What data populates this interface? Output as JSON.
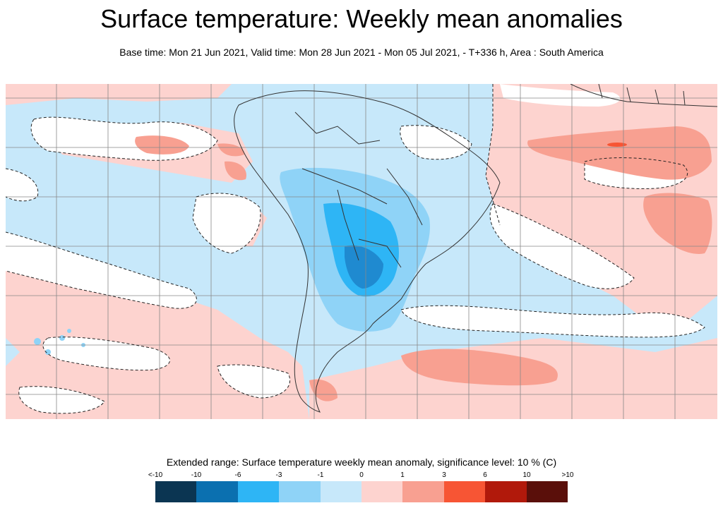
{
  "header": {
    "title": "Surface temperature: Weekly mean anomalies",
    "subtitle": "Base time: Mon 21 Jun 2021, Valid time: Mon 28 Jun 2021 - Mon 05 Jul 2021, - T+336 h, Area : South America"
  },
  "map": {
    "area": "South America",
    "grid": true,
    "significance_contour": "dashed"
  },
  "legend": {
    "title": "Extended range: Surface temperature weekly mean anomaly, significance level: 10 % (C)",
    "ticks": [
      "<-10",
      "-10",
      "-6",
      "-3",
      "-1",
      "0",
      "1",
      "3",
      "6",
      "10",
      ">10"
    ],
    "colors": [
      "#0b3552",
      "#0b70b0",
      "#2eb5f5",
      "#8fd3f7",
      "#c7e8fa",
      "#fdd3cf",
      "#f8a091",
      "#f75534",
      "#b1190b",
      "#5a0f0a"
    ]
  },
  "colors": {
    "neutral_cold": "#c7e8fa",
    "neutral_warm": "#fdd3cf",
    "land_outline": "#333333"
  }
}
